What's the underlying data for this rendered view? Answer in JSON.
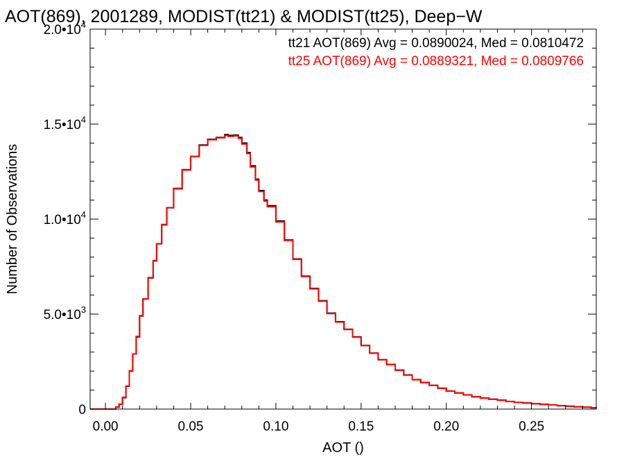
{
  "chart_data": {
    "type": "line",
    "step": true,
    "title": "AOT(869), 2001289, MODIST(tt21) & MODIST(tt25), Deep−W",
    "xlabel": "AOT ()",
    "ylabel": "Number of Observations",
    "xlim": [
      -0.009,
      0.288
    ],
    "ylim": [
      0,
      20000
    ],
    "grid": false,
    "x_ticks": [
      {
        "value": 0.0,
        "label": "0.00"
      },
      {
        "value": 0.05,
        "label": "0.05"
      },
      {
        "value": 0.1,
        "label": "0.10"
      },
      {
        "value": 0.15,
        "label": "0.15"
      },
      {
        "value": 0.2,
        "label": "0.20"
      },
      {
        "value": 0.25,
        "label": "0.25"
      }
    ],
    "y_ticks": [
      {
        "value": 0,
        "mant": "0",
        "exp": ""
      },
      {
        "value": 5000,
        "mant": "5.0•10",
        "exp": "3"
      },
      {
        "value": 10000,
        "mant": "1.0•10",
        "exp": "4"
      },
      {
        "value": 15000,
        "mant": "1.5•10",
        "exp": "4"
      },
      {
        "value": 20000,
        "mant": "2.0•10",
        "exp": "4"
      }
    ],
    "legend_position": "top-right",
    "legend": [
      {
        "text": "tt21 AOT(869) Avg = 0.0890024, Med = 0.0810472",
        "color": "#000000"
      },
      {
        "text": "tt25 AOT(869) Avg = 0.0889321, Med = 0.0809766",
        "color": "#ff0000"
      }
    ],
    "series": [
      {
        "color": "#000000",
        "x": [
          -0.009,
          0.0,
          0.006,
          0.008,
          0.01,
          0.012,
          0.014,
          0.016,
          0.018,
          0.02,
          0.022,
          0.025,
          0.028,
          0.03,
          0.033,
          0.036,
          0.04,
          0.045,
          0.05,
          0.055,
          0.06,
          0.065,
          0.07,
          0.072,
          0.075,
          0.078,
          0.08,
          0.083,
          0.085,
          0.088,
          0.09,
          0.093,
          0.095,
          0.1,
          0.105,
          0.11,
          0.115,
          0.12,
          0.125,
          0.13,
          0.135,
          0.14,
          0.145,
          0.15,
          0.155,
          0.16,
          0.165,
          0.17,
          0.175,
          0.18,
          0.185,
          0.19,
          0.195,
          0.2,
          0.205,
          0.21,
          0.215,
          0.22,
          0.225,
          0.23,
          0.235,
          0.24,
          0.245,
          0.25,
          0.255,
          0.26,
          0.265,
          0.27,
          0.275,
          0.28,
          0.285,
          0.288
        ],
        "values": [
          0,
          0,
          100,
          250,
          600,
          1200,
          2000,
          2900,
          3800,
          4900,
          5800,
          6900,
          7800,
          8700,
          9700,
          10600,
          11600,
          12600,
          13300,
          13900,
          14200,
          14300,
          14450,
          14400,
          14420,
          14300,
          14000,
          13500,
          12800,
          12100,
          11500,
          11000,
          10700,
          9900,
          8900,
          7900,
          7000,
          6350,
          5700,
          5050,
          4600,
          4200,
          3800,
          3350,
          2950,
          2600,
          2350,
          2050,
          1800,
          1550,
          1400,
          1250,
          1100,
          950,
          850,
          750,
          650,
          580,
          520,
          470,
          400,
          350,
          320,
          280,
          250,
          220,
          180,
          150,
          120,
          100,
          70,
          50
        ]
      },
      {
        "color": "#ff0000",
        "x": [
          -0.009,
          0.0,
          0.006,
          0.008,
          0.01,
          0.012,
          0.014,
          0.016,
          0.018,
          0.02,
          0.022,
          0.025,
          0.028,
          0.03,
          0.033,
          0.036,
          0.04,
          0.045,
          0.05,
          0.055,
          0.06,
          0.065,
          0.07,
          0.072,
          0.075,
          0.078,
          0.08,
          0.083,
          0.085,
          0.088,
          0.09,
          0.093,
          0.095,
          0.1,
          0.105,
          0.11,
          0.115,
          0.12,
          0.125,
          0.13,
          0.135,
          0.14,
          0.145,
          0.15,
          0.155,
          0.16,
          0.165,
          0.17,
          0.175,
          0.18,
          0.185,
          0.19,
          0.195,
          0.2,
          0.205,
          0.21,
          0.215,
          0.22,
          0.225,
          0.23,
          0.235,
          0.24,
          0.245,
          0.25,
          0.255,
          0.26,
          0.265,
          0.27,
          0.275,
          0.28,
          0.285,
          0.288
        ],
        "values": [
          0,
          0,
          110,
          260,
          620,
          1210,
          2020,
          2900,
          3820,
          4920,
          5800,
          6920,
          7820,
          8700,
          9720,
          10600,
          11620,
          12580,
          13300,
          13880,
          14180,
          14280,
          14400,
          14350,
          14380,
          14250,
          13950,
          13450,
          12750,
          12050,
          11450,
          10950,
          10650,
          9850,
          8880,
          7880,
          6980,
          6330,
          5680,
          5030,
          4580,
          4190,
          3790,
          3340,
          2940,
          2590,
          2340,
          2040,
          1790,
          1540,
          1390,
          1240,
          1090,
          945,
          845,
          745,
          645,
          575,
          515,
          465,
          398,
          348,
          318,
          278,
          248,
          218,
          178,
          148,
          118,
          98,
          68,
          48
        ]
      }
    ]
  }
}
